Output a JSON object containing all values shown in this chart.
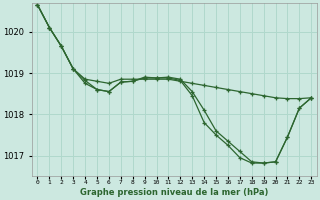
{
  "title": "Graphe pression niveau de la mer (hPa)",
  "background_color": "#cce8e0",
  "grid_color": "#b0d8cc",
  "line_color": "#2d6630",
  "x_labels": [
    "0",
    "1",
    "2",
    "3",
    "4",
    "5",
    "6",
    "7",
    "8",
    "9",
    "10",
    "11",
    "12",
    "13",
    "14",
    "15",
    "16",
    "17",
    "18",
    "19",
    "20",
    "21",
    "22",
    "23"
  ],
  "ylim": [
    1016.5,
    1020.7
  ],
  "yticks": [
    1017,
    1018,
    1019,
    1020
  ],
  "series": [
    [
      1020.65,
      1020.1,
      1019.65,
      1019.1,
      1018.85,
      1018.8,
      1018.75,
      1018.85,
      1018.85,
      1018.85,
      1018.85,
      1018.85,
      1018.8,
      1018.75,
      1018.7,
      1018.65,
      1018.6,
      1018.55,
      1018.5,
      1018.45,
      1018.4,
      1018.38,
      1018.38,
      1018.4
    ],
    [
      1020.65,
      1020.1,
      1019.65,
      1019.1,
      1018.75,
      1018.6,
      1018.55,
      1018.78,
      1018.8,
      1018.9,
      1018.88,
      1018.9,
      1018.85,
      1018.55,
      1018.1,
      1017.6,
      1017.35,
      1017.1,
      1016.85,
      1016.82,
      1016.85,
      1017.45,
      1018.15,
      1018.4
    ],
    [
      1020.65,
      1020.1,
      1019.65,
      1019.1,
      1018.82,
      1018.6,
      1018.55,
      1018.78,
      1018.8,
      1018.88,
      1018.88,
      1018.88,
      1018.82,
      1018.45,
      1017.8,
      1017.5,
      1017.25,
      1016.95,
      1016.82,
      1016.82,
      1016.85,
      1017.45,
      1018.15,
      1018.4
    ]
  ]
}
